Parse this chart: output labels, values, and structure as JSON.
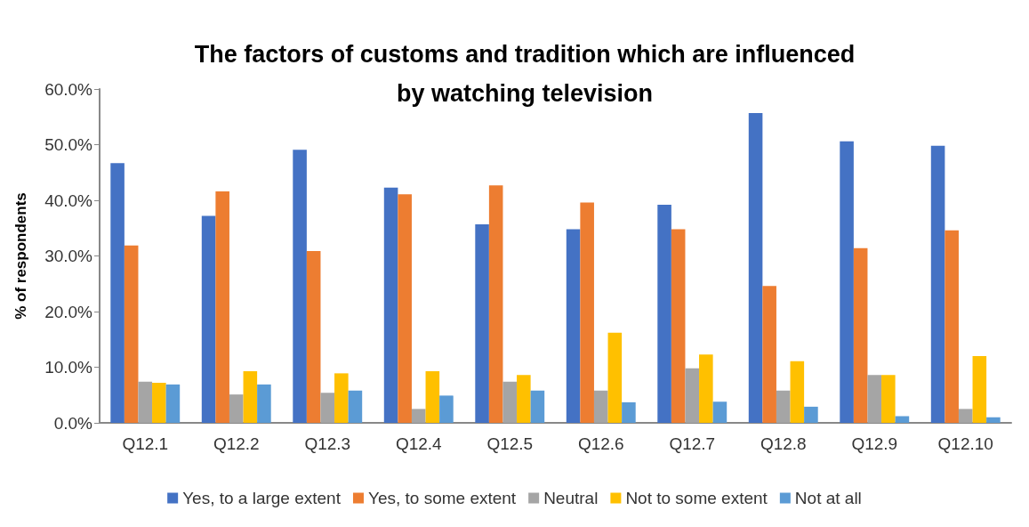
{
  "chart_data": {
    "type": "bar",
    "title": "The factors of customs and tradition which are influenced\nby watching television",
    "ylabel": "% of respondents",
    "categories": [
      "Q12.1",
      "Q12.2",
      "Q12.3",
      "Q12.4",
      "Q12.5",
      "Q12.6",
      "Q12.7",
      "Q12.8",
      "Q12.9",
      "Q12.10"
    ],
    "series": [
      {
        "name": "Yes, to a large extent",
        "color": "#4472c4",
        "values": [
          46.7,
          37.2,
          49.1,
          42.3,
          35.7,
          34.8,
          39.2,
          55.7,
          50.6,
          49.8
        ]
      },
      {
        "name": "Yes, to some extent",
        "color": "#ed7d31",
        "values": [
          31.9,
          41.6,
          30.9,
          41.1,
          42.7,
          39.6,
          34.8,
          24.6,
          31.4,
          34.6
        ]
      },
      {
        "name": "Neutral",
        "color": "#a5a5a5",
        "values": [
          7.4,
          5.1,
          5.4,
          2.5,
          7.4,
          5.8,
          9.8,
          5.8,
          8.6,
          2.5
        ]
      },
      {
        "name": "Not to some extent",
        "color": "#ffc000",
        "values": [
          7.2,
          9.3,
          8.9,
          9.3,
          8.6,
          16.2,
          12.3,
          11.1,
          8.6,
          12.0
        ]
      },
      {
        "name": "Not at all",
        "color": "#5b9bd5",
        "values": [
          6.9,
          6.9,
          5.8,
          4.9,
          5.8,
          3.7,
          3.8,
          2.9,
          1.2,
          1.0
        ]
      }
    ],
    "ylim": [
      0,
      60
    ],
    "yticks": [
      {
        "value": 0,
        "label": "0.0%"
      },
      {
        "value": 10,
        "label": "10.0%"
      },
      {
        "value": 20,
        "label": "20.0%"
      },
      {
        "value": 30,
        "label": "30.0%"
      },
      {
        "value": 40,
        "label": "40.0%"
      },
      {
        "value": 50,
        "label": "50.0%"
      },
      {
        "value": 60,
        "label": "60.0%"
      }
    ],
    "grid": false,
    "legend": "bottom"
  }
}
